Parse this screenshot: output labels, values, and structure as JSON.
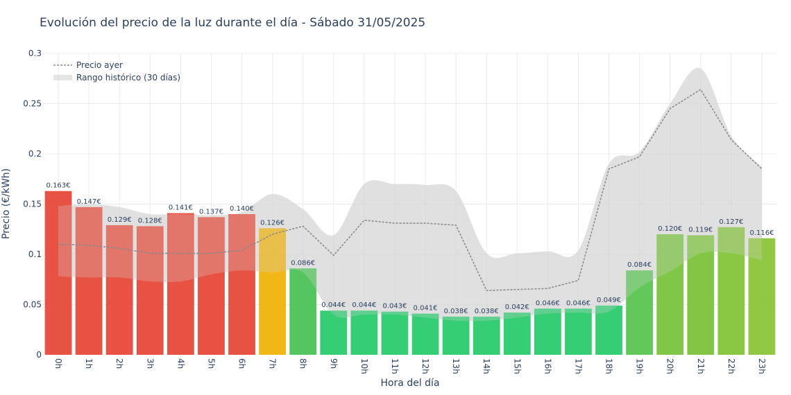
{
  "chart_data": {
    "type": "bar",
    "title": "Evolución del precio de la luz durante el día - Sábado 31/05/2025",
    "xlabel": "Hora del día",
    "ylabel": "Precio (€/kWh)",
    "ylim": [
      0,
      0.3
    ],
    "yticks": [
      0,
      0.05,
      0.1,
      0.15,
      0.2,
      0.25,
      0.3
    ],
    "ytick_labels": [
      "0",
      "0.05",
      "0.1",
      "0.15",
      "0.2",
      "0.25",
      "0.3"
    ],
    "categories": [
      "0h",
      "1h",
      "2h",
      "3h",
      "4h",
      "5h",
      "6h",
      "7h",
      "8h",
      "9h",
      "10h",
      "11h",
      "12h",
      "13h",
      "14h",
      "15h",
      "16h",
      "17h",
      "18h",
      "19h",
      "20h",
      "21h",
      "22h",
      "23h"
    ],
    "values": [
      0.163,
      0.147,
      0.129,
      0.128,
      0.141,
      0.137,
      0.14,
      0.126,
      0.086,
      0.044,
      0.044,
      0.043,
      0.041,
      0.038,
      0.038,
      0.042,
      0.046,
      0.046,
      0.049,
      0.084,
      0.12,
      0.119,
      0.127,
      0.116
    ],
    "value_labels": [
      "0.163€",
      "0.147€",
      "0.129€",
      "0.128€",
      "0.141€",
      "0.137€",
      "0.140€",
      "0.126€",
      "0.086€",
      "0.044€",
      "0.044€",
      "0.043€",
      "0.041€",
      "0.038€",
      "0.038€",
      "0.042€",
      "0.046€",
      "0.046€",
      "0.049€",
      "0.084€",
      "0.120€",
      "0.119€",
      "0.127€",
      "0.116€"
    ],
    "bar_colors": [
      "#e74c3c",
      "#e74c3c",
      "#e74c3c",
      "#e74c3c",
      "#e74c3c",
      "#e74c3c",
      "#e74c3c",
      "#f1b50f",
      "#4fc45a",
      "#2ecc71",
      "#2ecc71",
      "#2ecc71",
      "#2ecc71",
      "#2ecc71",
      "#2ecc71",
      "#2ecc71",
      "#2ecc71",
      "#2ecc71",
      "#2ecc71",
      "#5dc655",
      "#7cc441",
      "#7fc43f",
      "#86c53d",
      "#8cc63c"
    ],
    "yesterday": {
      "name": "Precio ayer",
      "values": [
        0.11,
        0.109,
        0.106,
        0.101,
        0.101,
        0.101,
        0.104,
        0.12,
        0.128,
        0.099,
        0.134,
        0.131,
        0.131,
        0.129,
        0.064,
        0.065,
        0.066,
        0.074,
        0.185,
        0.197,
        0.245,
        0.264,
        0.214,
        0.185
      ]
    },
    "historical_range": {
      "name": "Rango histórico (30 días)",
      "upper": [
        0.148,
        0.15,
        0.147,
        0.14,
        0.14,
        0.139,
        0.142,
        0.16,
        0.145,
        0.119,
        0.17,
        0.17,
        0.169,
        0.163,
        0.101,
        0.101,
        0.103,
        0.104,
        0.19,
        0.202,
        0.25,
        0.285,
        0.218,
        0.187
      ],
      "lower": [
        0.078,
        0.077,
        0.077,
        0.073,
        0.073,
        0.08,
        0.084,
        0.082,
        0.082,
        0.04,
        0.04,
        0.04,
        0.037,
        0.034,
        0.034,
        0.037,
        0.041,
        0.042,
        0.043,
        0.067,
        0.083,
        0.101,
        0.101,
        0.094
      ]
    },
    "legend_position": "top-left"
  },
  "colors": {
    "range_fill": "#d3d3d3",
    "yesterday_line": "#8a8a8a",
    "grid": "#e8ecf1"
  }
}
